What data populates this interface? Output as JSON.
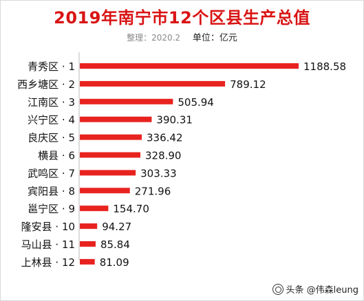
{
  "chart_data": {
    "type": "bar",
    "orientation": "horizontal",
    "title": "2019年南宁市12个区县生产总值",
    "note": "整理：2020.2",
    "unit": "单位：亿元",
    "categories": [
      "青秀区 · 1",
      "西乡塘区 · 2",
      "江南区 · 3",
      "兴宁区 · 4",
      "良庆区 · 5",
      "横县 · 6",
      "武鸣区 · 7",
      "宾阳县 · 8",
      "邕宁区 · 9",
      "隆安县 · 10",
      "马山县 · 11",
      "上林县 · 12"
    ],
    "values": [
      1188.58,
      789.12,
      505.94,
      390.31,
      336.42,
      328.9,
      303.33,
      271.96,
      154.7,
      94.27,
      85.84,
      81.09
    ],
    "value_labels": [
      "1188.58",
      "789.12",
      "505.94",
      "390.31",
      "336.42",
      "328.90",
      "303.33",
      "271.96",
      "154.70",
      "94.27",
      "85.84",
      "81.09"
    ],
    "bar_color": "#e8231f",
    "grid": false,
    "legend": "none"
  },
  "watermark": {
    "text": "头条 @伟森leung",
    "icon": "camera-lens-icon"
  }
}
